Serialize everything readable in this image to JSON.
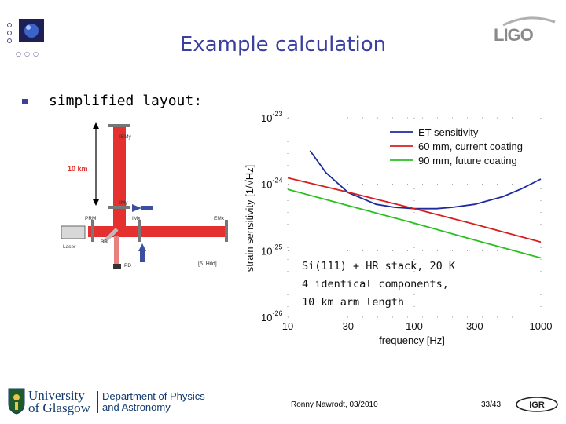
{
  "slide": {
    "title": "Example calculation",
    "bullet": "simplified layout:",
    "logo_text": "LIGO",
    "university": "University of Glasgow",
    "department": "Department of Physics and Astronomy",
    "footer_author": "Ronny Nawrodt, 03/2010",
    "page_number": "33/43",
    "institute_logo": "IGR"
  },
  "caption": {
    "line1": "Si(111) + HR stack, 20 K",
    "line2": "4 identical components,",
    "line3": "10 km arm length"
  },
  "diagram": {
    "arm_length": "10 km",
    "labels": [
      "IEMy",
      "IMy",
      "PRM",
      "IMx",
      "EMx",
      "BS",
      "Laser",
      "PD"
    ],
    "citation": "[5. Hild]"
  },
  "chart_data": {
    "type": "line",
    "x_scale": "log",
    "y_scale": "log",
    "xlabel": "frequency [Hz]",
    "ylabel": "strain sensitivity [1/√Hz]",
    "xlim": [
      10,
      1000
    ],
    "ylim": [
      1e-26,
      1e-23
    ],
    "x_ticks": [
      "10",
      "30",
      "100",
      "300",
      "1000"
    ],
    "y_ticks": [
      "10-23",
      "10-24",
      "10-25",
      "10-26"
    ],
    "legend_position": "top-right",
    "series": [
      {
        "name": "ET sensitivity",
        "color": "#1f2a9e",
        "x": [
          15,
          20,
          30,
          50,
          70,
          100,
          150,
          200,
          300,
          500,
          700,
          1000
        ],
        "y": [
          3.2e-24,
          1.5e-24,
          7.5e-25,
          5e-25,
          4.5e-25,
          4.3e-25,
          4.3e-25,
          4.5e-25,
          5e-25,
          6.5e-25,
          8.5e-25,
          1.2e-24
        ]
      },
      {
        "name": "60 mm, current coating",
        "color": "#d42020",
        "x": [
          10,
          30,
          100,
          300,
          1000
        ],
        "y": [
          1.25e-24,
          7.6e-25,
          4.3e-25,
          2.5e-25,
          1.35e-25
        ]
      },
      {
        "name": "90 mm, future coating",
        "color": "#27c21e",
        "x": [
          10,
          30,
          100,
          300,
          1000
        ],
        "y": [
          8.4e-25,
          4.8e-25,
          2.6e-25,
          1.45e-25,
          7.8e-26
        ]
      }
    ]
  }
}
